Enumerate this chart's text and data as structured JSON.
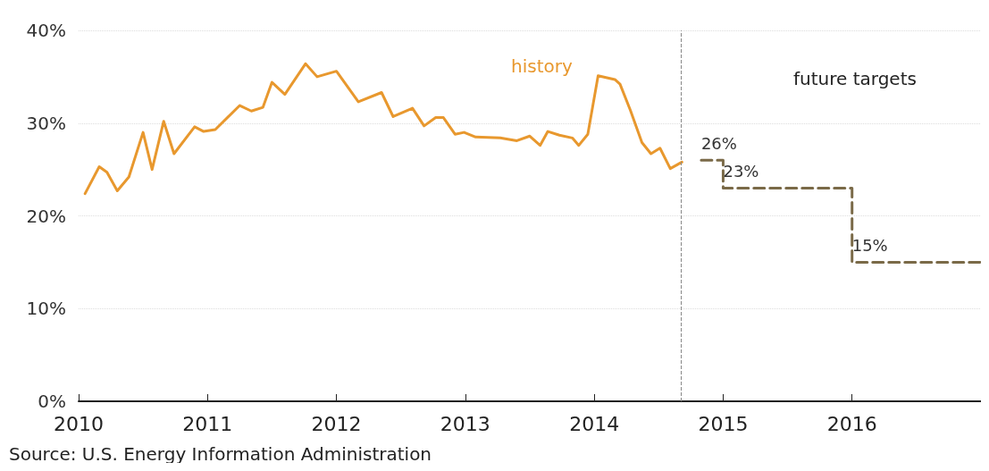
{
  "chart_data": {
    "type": "line",
    "xlim": [
      2010,
      2017
    ],
    "xticks": [
      2010,
      2011,
      2012,
      2013,
      2014,
      2015,
      2016
    ],
    "ylim": [
      0,
      40
    ],
    "yticks": [
      {
        "value": 0,
        "label": "0%"
      },
      {
        "value": 10,
        "label": "10%"
      },
      {
        "value": 20,
        "label": "20%"
      },
      {
        "value": 30,
        "label": "30%"
      },
      {
        "value": 40,
        "label": "40%"
      }
    ],
    "grid": "y",
    "series": [
      {
        "color": "#e8982e",
        "line_style": "solid",
        "x": [
          2010.05,
          2010.16,
          2010.22,
          2010.3,
          2010.39,
          2010.5,
          2010.57,
          2010.66,
          2010.74,
          2010.9,
          2010.97,
          2011.06,
          2011.25,
          2011.34,
          2011.43,
          2011.5,
          2011.6,
          2011.76,
          2011.85,
          2012.0,
          2012.17,
          2012.35,
          2012.44,
          2012.59,
          2012.68,
          2012.77,
          2012.83,
          2012.92,
          2012.99,
          2013.08,
          2013.27,
          2013.4,
          2013.5,
          2013.58,
          2013.64,
          2013.73,
          2013.83,
          2013.88,
          2013.95,
          2014.03,
          2014.16,
          2014.2,
          2014.28,
          2014.37,
          2014.44,
          2014.51,
          2014.59,
          2014.68
        ],
        "values": [
          22.4,
          25.3,
          24.7,
          22.7,
          24.2,
          29.0,
          25.0,
          30.2,
          26.7,
          29.6,
          29.1,
          29.3,
          31.9,
          31.3,
          31.7,
          34.4,
          33.1,
          36.4,
          35.0,
          35.6,
          32.3,
          33.3,
          30.7,
          31.6,
          29.7,
          30.6,
          30.6,
          28.8,
          29.0,
          28.5,
          28.4,
          28.1,
          28.6,
          27.6,
          29.1,
          28.7,
          28.4,
          27.6,
          28.8,
          35.1,
          34.7,
          34.2,
          31.4,
          27.9,
          26.7,
          27.3,
          25.1,
          25.8
        ]
      },
      {
        "type": "step",
        "color": "#7a6a48",
        "line_style": "dashed",
        "x": [
          2014.83,
          2015.0,
          2016.0,
          2017.0
        ],
        "values": [
          26,
          23,
          15,
          15
        ],
        "value_labels": [
          "26%",
          "23%",
          "15%",
          null
        ]
      }
    ],
    "ref_lines": [
      {
        "axis": "x",
        "value": 2014.67,
        "color": "#888888",
        "line_style": "dashed"
      }
    ],
    "annotations": [
      "history",
      "future targets",
      "Source: U.S. Energy Information Administration"
    ]
  }
}
